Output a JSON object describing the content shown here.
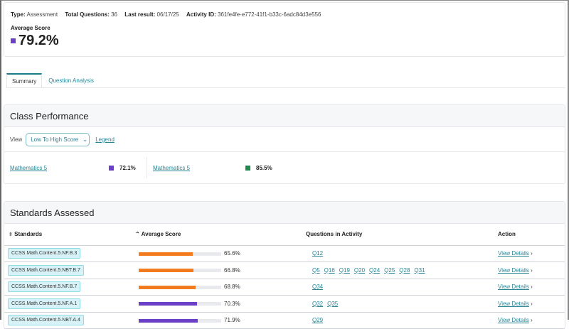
{
  "summary": {
    "type_label": "Type:",
    "type": "Assessment",
    "tq_label": "Total Questions:",
    "tq": "36",
    "lr_label": "Last result:",
    "lr": "06/17/25",
    "aid_label": "Activity ID:",
    "aid": "361fe4fe-e772-41f1-b33c-6adc84d3e556",
    "avg_label": "Average Score",
    "avg": "79.2%",
    "avg_color": "#6b3fc6"
  },
  "tabs": [
    {
      "label": "Summary",
      "active": true
    },
    {
      "label": "Question Analysis",
      "active": false
    }
  ],
  "class_performance": {
    "title": "Class Performance",
    "view_label": "View",
    "view_value": "Low To High Score",
    "legend": "Legend",
    "classes": [
      {
        "name": "Mathematics 5",
        "score": "72.1%",
        "color": "#6b3fc6"
      },
      {
        "name": "Mathematics 5",
        "score": "85.5%",
        "color": "#1e8a4e"
      }
    ]
  },
  "standards": {
    "title": "Standards Assessed",
    "columns": [
      "Standards",
      "Average Score",
      "Questions in Activity",
      "Action"
    ],
    "rows": [
      {
        "code": "CCSS.Math.Content.5.NF.B.3",
        "score": "65.6%",
        "value": 65.6,
        "color": "#f47c20",
        "questions": [
          "Q12"
        ],
        "action": "View Details"
      },
      {
        "code": "CCSS.Math.Content.5.NBT.B.7",
        "score": "66.8%",
        "value": 66.8,
        "color": "#f47c20",
        "questions": [
          "Q5",
          "Q16",
          "Q19",
          "Q20",
          "Q24",
          "Q25",
          "Q28",
          "Q31"
        ],
        "action": "View Details"
      },
      {
        "code": "CCSS.Math.Content.5.NF.B.7",
        "score": "68.8%",
        "value": 68.8,
        "color": "#f47c20",
        "questions": [
          "Q34"
        ],
        "action": "View Details"
      },
      {
        "code": "CCSS.Math.Content.5.NF.A.1",
        "score": "70.3%",
        "value": 70.3,
        "color": "#6b3fc6",
        "questions": [
          "Q32",
          "Q35"
        ],
        "action": "View Details"
      },
      {
        "code": "CCSS.Math.Content.5.NBT.A.4",
        "score": "71.9%",
        "value": 71.9,
        "color": "#6b3fc6",
        "questions": [
          "Q29"
        ],
        "action": "View Details"
      }
    ]
  }
}
